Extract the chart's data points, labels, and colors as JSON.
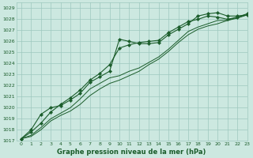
{
  "title": "Graphe pression niveau de la mer (hPa)",
  "bg_color": "#cce8e0",
  "grid_color": "#9ec8be",
  "line_color": "#1a5c2a",
  "xlim": [
    -0.5,
    23
  ],
  "ylim": [
    1017,
    1029.5
  ],
  "xticks": [
    0,
    1,
    2,
    3,
    4,
    5,
    6,
    7,
    8,
    9,
    10,
    11,
    12,
    13,
    14,
    15,
    16,
    17,
    18,
    19,
    20,
    21,
    22,
    23
  ],
  "yticks": [
    1017,
    1018,
    1019,
    1020,
    1021,
    1022,
    1023,
    1024,
    1025,
    1026,
    1027,
    1028,
    1029
  ],
  "series": [
    {
      "x": [
        0,
        1,
        2,
        3,
        4,
        5,
        6,
        7,
        8,
        9,
        10,
        11,
        12,
        13,
        14,
        15,
        16,
        17,
        18,
        19,
        20,
        21,
        22,
        23
      ],
      "y": [
        1017.2,
        1018.0,
        1019.4,
        1020.0,
        1020.2,
        1020.7,
        1021.3,
        1022.3,
        1022.8,
        1023.3,
        1026.2,
        1026.0,
        1025.8,
        1025.8,
        1025.9,
        1026.6,
        1027.1,
        1027.6,
        1028.3,
        1028.5,
        1028.6,
        1028.3,
        1028.3,
        1028.4
      ],
      "marker": true,
      "lw": 0.8
    },
    {
      "x": [
        0,
        1,
        2,
        3,
        4,
        5,
        6,
        7,
        8,
        9,
        10,
        11,
        12,
        13,
        14,
        15,
        16,
        17,
        18,
        19,
        20,
        21,
        22,
        23
      ],
      "y": [
        1017.2,
        1017.8,
        1018.6,
        1019.6,
        1020.3,
        1020.9,
        1021.6,
        1022.5,
        1023.1,
        1023.9,
        1025.4,
        1025.7,
        1025.9,
        1026.0,
        1026.1,
        1026.8,
        1027.3,
        1027.8,
        1028.0,
        1028.3,
        1028.2,
        1028.0,
        1028.2,
        1028.5
      ],
      "marker": true,
      "lw": 0.8
    },
    {
      "x": [
        0,
        1,
        2,
        3,
        4,
        5,
        6,
        7,
        8,
        9,
        10,
        11,
        12,
        13,
        14,
        15,
        16,
        17,
        18,
        19,
        20,
        21,
        22,
        23
      ],
      "y": [
        1017.2,
        1017.5,
        1018.2,
        1019.0,
        1019.5,
        1020.0,
        1020.8,
        1021.7,
        1022.2,
        1022.7,
        1022.9,
        1023.3,
        1023.6,
        1024.1,
        1024.6,
        1025.3,
        1026.1,
        1026.9,
        1027.3,
        1027.6,
        1027.9,
        1027.9,
        1028.2,
        1028.4
      ],
      "marker": false,
      "lw": 0.7
    },
    {
      "x": [
        0,
        1,
        2,
        3,
        4,
        5,
        6,
        7,
        8,
        9,
        10,
        11,
        12,
        13,
        14,
        15,
        16,
        17,
        18,
        19,
        20,
        21,
        22,
        23
      ],
      "y": [
        1017.2,
        1017.4,
        1018.0,
        1018.8,
        1019.3,
        1019.7,
        1020.3,
        1021.1,
        1021.7,
        1022.2,
        1022.5,
        1022.9,
        1023.3,
        1023.9,
        1024.4,
        1025.1,
        1025.9,
        1026.6,
        1027.1,
        1027.4,
        1027.6,
        1027.9,
        1028.1,
        1028.4
      ],
      "marker": false,
      "lw": 0.7
    }
  ],
  "marker_style": "D",
  "marker_size": 2.2,
  "tick_fontsize": 4.5,
  "xlabel_fontsize": 6.0
}
